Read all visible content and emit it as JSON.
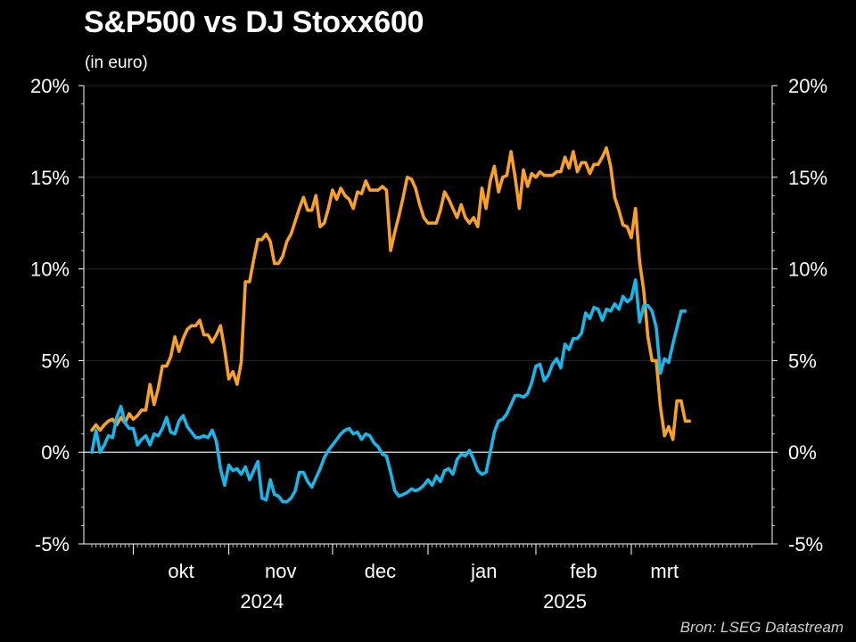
{
  "chart_data": {
    "type": "line",
    "title": "S&P500 vs DJ Stoxx600",
    "subtitle": "(in euro)",
    "source": "Bron: LSEG Datastream",
    "ylim": [
      -5,
      20
    ],
    "y_ticks": [
      -5,
      0,
      5,
      10,
      15,
      20
    ],
    "y_tick_labels": [
      "-5%",
      "0%",
      "5%",
      "10%",
      "15%",
      "20%"
    ],
    "x_range": [
      0,
      159
    ],
    "month_ticks": [
      {
        "label": "okt",
        "center": 21.5
      },
      {
        "label": "nov",
        "center": 45.5
      },
      {
        "label": "dec",
        "center": 69.5
      },
      {
        "label": "jan",
        "center": 94.5
      },
      {
        "label": "feb",
        "center": 118.5
      },
      {
        "label": "mrt",
        "center": 138
      }
    ],
    "month_boundaries": [
      10,
      33,
      58,
      81,
      107,
      130
    ],
    "year_labels": [
      {
        "label": "2024",
        "center": 41
      },
      {
        "label": "2025",
        "center": 114
      }
    ],
    "grid": true,
    "legend": "none",
    "series": [
      {
        "color": "#f7a12a",
        "values": [
          1.2,
          1.5,
          1.2,
          1.5,
          1.7,
          1.8,
          1.5,
          1.9,
          1.6,
          2.1,
          1.8,
          2.0,
          2.3,
          2.3,
          3.7,
          2.6,
          3.5,
          4.7,
          4.7,
          5.2,
          6.3,
          5.5,
          6.2,
          6.7,
          6.9,
          6.9,
          7.2,
          6.4,
          6.4,
          6.0,
          6.4,
          6.9,
          5.6,
          4.0,
          4.4,
          3.7,
          4.9,
          9.3,
          9.3,
          10.5,
          11.6,
          11.6,
          11.9,
          11.5,
          10.3,
          10.3,
          10.7,
          11.5,
          11.9,
          12.6,
          13.3,
          13.9,
          13.2,
          13.2,
          14.0,
          12.3,
          12.5,
          13.3,
          14.3,
          13.8,
          14.4,
          14.0,
          13.8,
          13.3,
          14.2,
          14.1,
          14.8,
          14.3,
          14.3,
          14.3,
          14.5,
          14.3,
          11.0,
          12.0,
          12.9,
          13.9,
          15.0,
          14.9,
          14.4,
          13.5,
          12.8,
          12.5,
          12.5,
          12.5,
          13.2,
          14.2,
          13.8,
          13.3,
          12.8,
          13.5,
          12.8,
          12.5,
          12.8,
          12.3,
          14.4,
          13.3,
          14.8,
          15.6,
          14.2,
          15.0,
          15.1,
          16.4,
          15.0,
          13.3,
          15.4,
          14.5,
          15.2,
          15.0,
          15.3,
          15.1,
          15.1,
          15.1,
          15.3,
          15.3,
          16.1,
          15.5,
          16.4,
          15.3,
          15.8,
          15.8,
          15.2,
          15.7,
          15.7,
          16.1,
          16.6,
          15.6,
          13.9,
          13.2,
          12.4,
          12.3,
          11.7,
          13.3,
          10.4,
          8.8,
          6.3,
          5.0,
          5.0,
          2.5,
          0.9,
          1.4,
          0.7,
          2.8,
          2.8,
          1.7,
          1.7
        ]
      },
      {
        "color": "#1ab6e8",
        "values": [
          0.0,
          1.2,
          0.0,
          0.4,
          0.9,
          0.8,
          1.9,
          2.5,
          1.6,
          1.3,
          1.3,
          0.4,
          0.7,
          0.9,
          0.4,
          1.0,
          0.9,
          1.3,
          1.9,
          1.1,
          1.0,
          1.7,
          2.0,
          1.4,
          1.1,
          0.8,
          0.8,
          0.9,
          0.8,
          1.2,
          0.6,
          -0.9,
          -1.8,
          -0.7,
          -1.0,
          -0.9,
          -1.2,
          -0.8,
          -1.5,
          -1.0,
          -0.5,
          -2.5,
          -2.6,
          -1.5,
          -2.3,
          -2.4,
          -2.7,
          -2.7,
          -2.5,
          -2.1,
          -1.1,
          -1.1,
          -1.6,
          -1.9,
          -1.4,
          -0.9,
          -0.3,
          0.1,
          0.4,
          0.7,
          1.0,
          1.2,
          1.3,
          1.0,
          1.1,
          0.7,
          1.0,
          0.9,
          0.5,
          0.3,
          -0.1,
          -0.2,
          -1.1,
          -2.1,
          -2.4,
          -2.3,
          -2.2,
          -2.0,
          -2.1,
          -2.0,
          -1.8,
          -1.5,
          -1.8,
          -1.3,
          -1.6,
          -1.0,
          -0.9,
          -1.2,
          -0.4,
          -0.1,
          -0.2,
          0.1,
          -0.4,
          -1.0,
          -1.2,
          -1.1,
          0.0,
          1.1,
          1.7,
          1.8,
          2.1,
          2.6,
          3.1,
          3.1,
          3.0,
          3.2,
          3.8,
          4.7,
          4.8,
          3.9,
          4.2,
          4.8,
          5.1,
          4.6,
          5.9,
          5.6,
          6.2,
          6.2,
          6.5,
          7.6,
          7.3,
          7.9,
          7.8,
          7.2,
          7.8,
          7.7,
          8.1,
          7.8,
          8.5,
          8.2,
          8.4,
          9.4,
          7.1,
          8.0,
          8.0,
          7.7,
          6.8,
          4.3,
          5.1,
          4.9,
          5.9,
          6.8,
          7.7,
          7.7
        ]
      }
    ]
  }
}
